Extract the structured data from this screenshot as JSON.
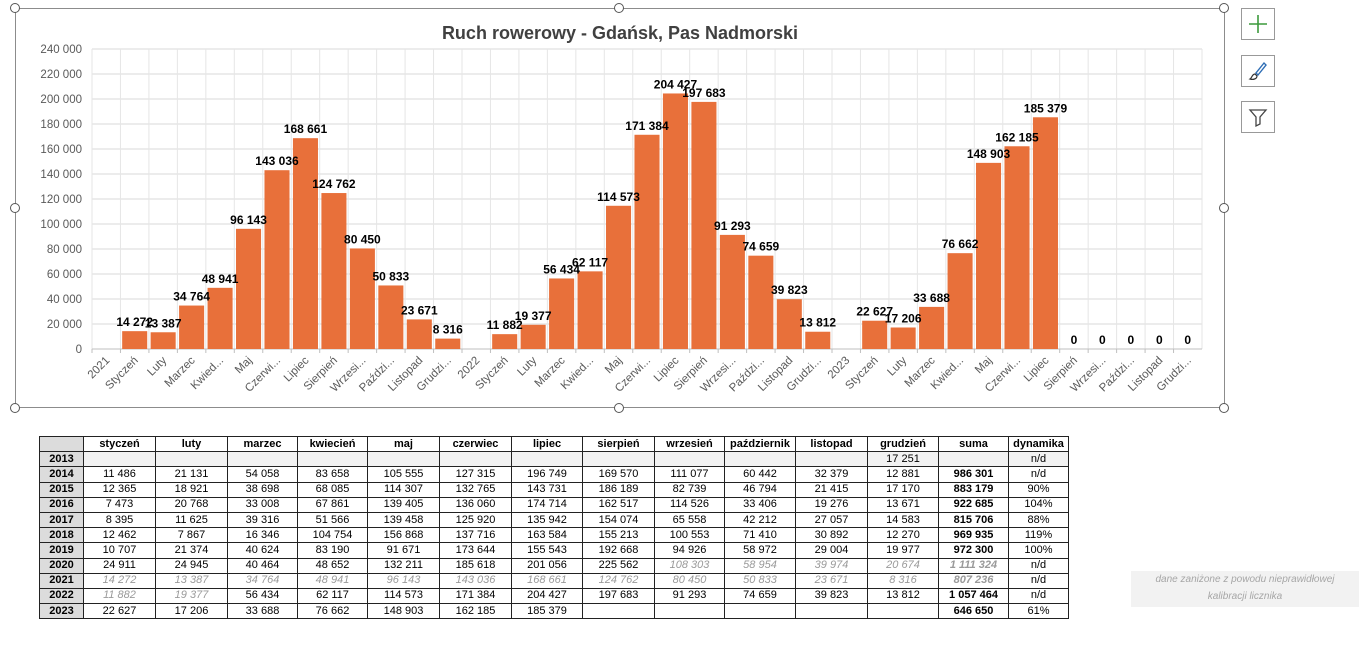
{
  "chart_data": {
    "type": "bar",
    "title": "Ruch rowerowy - Gdańsk, Pas Nadmorski",
    "xlabel": "",
    "ylabel": "",
    "ylim": [
      0,
      240000
    ],
    "y_ticks": [
      "0",
      "20 000",
      "40 000",
      "60 000",
      "80 000",
      "100 000",
      "120 000",
      "140 000",
      "160 000",
      "180 000",
      "200 000",
      "220 000",
      "240 000"
    ],
    "grid": true,
    "bar_color": "#E8703A",
    "categories": [
      "2021",
      "Styczeń",
      "Luty",
      "Marzec",
      "Kwied...",
      "Maj",
      "Czerwi...",
      "Lipiec",
      "Sierpień",
      "Wrzesi...",
      "Paździ...",
      "Listopad",
      "Grudzi...",
      "2022",
      "Styczeń",
      "Luty",
      "Marzec",
      "Kwied...",
      "Maj",
      "Czerwi...",
      "Lipiec",
      "Sierpień",
      "Wrzesi...",
      "Paździ...",
      "Listopad",
      "Grudzi...",
      "2023",
      "Styczeń",
      "Luty",
      "Marzec",
      "Kwied...",
      "Maj",
      "Czerwi...",
      "Lipiec",
      "Sierpień",
      "Wrzesi...",
      "Paździ...",
      "Listopad",
      "Grudzi..."
    ],
    "values": [
      null,
      14272,
      13387,
      34764,
      48941,
      96143,
      143036,
      168661,
      124762,
      80450,
      50833,
      23671,
      8316,
      null,
      11882,
      19377,
      56434,
      62117,
      114573,
      171384,
      204427,
      197683,
      91293,
      74659,
      39823,
      13812,
      null,
      22627,
      17206,
      33688,
      76662,
      148903,
      162185,
      185379,
      0,
      0,
      0,
      0,
      0
    ],
    "data_labels": [
      "",
      "14 272",
      "13 387",
      "34 764",
      "48 941",
      "96 143",
      "143 036",
      "168 661",
      "124 762",
      "80 450",
      "50 833",
      "23 671",
      "8 316",
      "",
      "11 882",
      "19 377",
      "56 434",
      "62 117",
      "114 573",
      "171 384",
      "204 427",
      "197 683",
      "91 293",
      "74 659",
      "39 823",
      "13 812",
      "",
      "22 627",
      "17 206",
      "33 688",
      "76 662",
      "148 903",
      "162 185",
      "185 379",
      "0",
      "0",
      "0",
      "0",
      "0"
    ]
  },
  "table": {
    "headers": [
      "",
      "styczeń",
      "luty",
      "marzec",
      "kwiecień",
      "maj",
      "czerwiec",
      "lipiec",
      "sierpień",
      "wrzesień",
      "październik",
      "listopad",
      "grudzień",
      "suma",
      "dynamika"
    ],
    "rows": [
      {
        "year": "2013",
        "cells": [
          "",
          "",
          "",
          "",
          "",
          "",
          "",
          "",
          "",
          "",
          "",
          "17 251"
        ],
        "sum": "",
        "dyn": "n/d",
        "grey": []
      },
      {
        "year": "2014",
        "cells": [
          "11 486",
          "21 131",
          "54 058",
          "83 658",
          "105 555",
          "127 315",
          "196 749",
          "169 570",
          "111 077",
          "60 442",
          "32 379",
          "12 881"
        ],
        "sum": "986 301",
        "dyn": "n/d",
        "grey": []
      },
      {
        "year": "2015",
        "cells": [
          "12 365",
          "18 921",
          "38 698",
          "68 085",
          "114 307",
          "132 765",
          "143 731",
          "186 189",
          "82 739",
          "46 794",
          "21 415",
          "17 170"
        ],
        "sum": "883 179",
        "dyn": "90%",
        "grey": []
      },
      {
        "year": "2016",
        "cells": [
          "7 473",
          "20 768",
          "33 008",
          "67 861",
          "139 405",
          "136 060",
          "174 714",
          "162 517",
          "114 526",
          "33 406",
          "19 276",
          "13 671"
        ],
        "sum": "922 685",
        "dyn": "104%",
        "grey": []
      },
      {
        "year": "2017",
        "cells": [
          "8 395",
          "11 625",
          "39 316",
          "51 566",
          "139 458",
          "125 920",
          "135 942",
          "154 074",
          "65 558",
          "42 212",
          "27 057",
          "14 583"
        ],
        "sum": "815 706",
        "dyn": "88%",
        "grey": []
      },
      {
        "year": "2018",
        "cells": [
          "12 462",
          "7 867",
          "16 346",
          "104 754",
          "156 868",
          "137 716",
          "163 584",
          "155 213",
          "100 553",
          "71 410",
          "30 892",
          "12 270"
        ],
        "sum": "969 935",
        "dyn": "119%",
        "grey": []
      },
      {
        "year": "2019",
        "cells": [
          "10 707",
          "21 374",
          "40 624",
          "83 190",
          "91 671",
          "173 644",
          "155 543",
          "192 668",
          "94 926",
          "58 972",
          "29 004",
          "19 977"
        ],
        "sum": "972 300",
        "dyn": "100%",
        "grey": []
      },
      {
        "year": "2020",
        "cells": [
          "24 911",
          "24 945",
          "40 464",
          "48 652",
          "132 211",
          "185 618",
          "201 056",
          "225 562",
          "108 303",
          "58 954",
          "39 974",
          "20 674"
        ],
        "sum": "1 111 324",
        "dyn": "n/d",
        "grey": [
          8,
          9,
          10,
          11,
          12
        ]
      },
      {
        "year": "2021",
        "cells": [
          "14 272",
          "13 387",
          "34 764",
          "48 941",
          "96 143",
          "143 036",
          "168 661",
          "124 762",
          "80 450",
          "50 833",
          "23 671",
          "8 316"
        ],
        "sum": "807 236",
        "dyn": "n/d",
        "grey": [
          0,
          1,
          2,
          3,
          4,
          5,
          6,
          7,
          8,
          9,
          10,
          11,
          12
        ]
      },
      {
        "year": "2022",
        "cells": [
          "11 882",
          "19 377",
          "56 434",
          "62 117",
          "114 573",
          "171 384",
          "204 427",
          "197 683",
          "91 293",
          "74 659",
          "39 823",
          "13 812"
        ],
        "sum": "1 057 464",
        "dyn": "n/d",
        "grey": [
          0,
          1
        ]
      },
      {
        "year": "2023",
        "cells": [
          "22 627",
          "17 206",
          "33 688",
          "76 662",
          "148 903",
          "162 185",
          "185 379",
          "",
          "",
          "",
          "",
          ""
        ],
        "sum": "646 650",
        "dyn": "61%",
        "grey": []
      }
    ]
  },
  "note": {
    "line1": "dane zaniżone z powodu nieprawidłowej",
    "line2": "kalibracji licznika"
  },
  "icons": {
    "add": "plus-icon",
    "style": "brush-icon",
    "filter": "filter-icon",
    "plus_color": "#3c9a3c",
    "brush_color": "#2e6db4"
  }
}
